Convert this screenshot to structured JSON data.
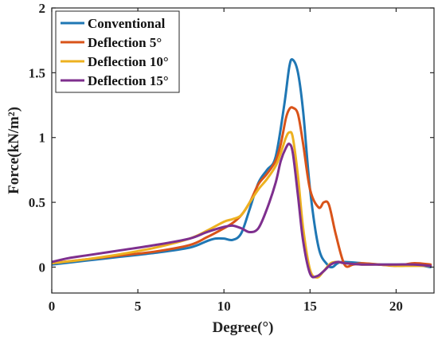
{
  "chart_data": {
    "type": "line",
    "title": "",
    "xlabel": "Degree(°)",
    "ylabel": "Force(kN/m²)",
    "xlim": [
      0,
      22.2
    ],
    "ylim": [
      -0.2,
      2
    ],
    "xticks": [
      0,
      5,
      10,
      15,
      20
    ],
    "yticks": [
      0,
      0.5,
      1,
      1.5,
      2
    ],
    "xtick_labels": [
      "0",
      "5",
      "10",
      "15",
      "20"
    ],
    "ytick_labels": [
      "0",
      "0.5",
      "1",
      "1.5",
      "2"
    ],
    "grid": false,
    "legend_position": "top-left",
    "series": [
      {
        "name": "Conventional",
        "color": "#1f77b4",
        "x": [
          0,
          2,
          4,
          6,
          8,
          9,
          9.5,
          10,
          10.5,
          11,
          11.5,
          12,
          12.5,
          13,
          13.5,
          13.8,
          14,
          14.3,
          14.6,
          15,
          15.5,
          16,
          16.3,
          16.6,
          17,
          18,
          19,
          20,
          21,
          22
        ],
        "y": [
          0.02,
          0.05,
          0.08,
          0.11,
          0.15,
          0.2,
          0.22,
          0.22,
          0.21,
          0.26,
          0.45,
          0.65,
          0.75,
          0.85,
          1.25,
          1.55,
          1.6,
          1.5,
          1.2,
          0.6,
          0.15,
          0.02,
          0,
          0.03,
          0.04,
          0.03,
          0.02,
          0.02,
          0.02,
          0.0
        ]
      },
      {
        "name": "Deflection 5°",
        "color": "#d95319",
        "x": [
          0,
          2,
          4,
          6,
          8,
          9,
          10,
          10.5,
          11,
          11.5,
          12,
          12.5,
          13,
          13.3,
          13.6,
          13.8,
          14,
          14.3,
          14.6,
          15,
          15.5,
          15.8,
          16.1,
          16.5,
          17,
          17.5,
          18,
          19,
          20,
          21,
          22
        ],
        "y": [
          0.03,
          0.06,
          0.09,
          0.12,
          0.17,
          0.23,
          0.3,
          0.34,
          0.4,
          0.5,
          0.64,
          0.72,
          0.82,
          0.95,
          1.15,
          1.22,
          1.23,
          1.18,
          0.95,
          0.6,
          0.46,
          0.5,
          0.48,
          0.25,
          0.02,
          0.02,
          0.03,
          0.02,
          0.01,
          0.03,
          0.02
        ]
      },
      {
        "name": "Deflection 10°",
        "color": "#edb120",
        "x": [
          0,
          2,
          4,
          6,
          8,
          9,
          10,
          10.5,
          11,
          11.5,
          12,
          12.5,
          13,
          13.3,
          13.6,
          13.8,
          14,
          14.3,
          14.6,
          15,
          15.4,
          15.8,
          16.2,
          16.6,
          17,
          18,
          19,
          20,
          21,
          22
        ],
        "y": [
          0.03,
          0.06,
          0.1,
          0.15,
          0.22,
          0.28,
          0.35,
          0.37,
          0.4,
          0.5,
          0.6,
          0.68,
          0.78,
          0.88,
          1.0,
          1.04,
          1.0,
          0.7,
          0.3,
          -0.02,
          -0.08,
          -0.03,
          0.03,
          0.04,
          0.03,
          0.02,
          0.02,
          0.01,
          0.01,
          0.01
        ]
      },
      {
        "name": "Deflection 15°",
        "color": "#7e2f8e",
        "x": [
          0,
          1,
          2,
          4,
          6,
          8,
          9,
          10,
          10.5,
          11,
          11.5,
          12,
          12.5,
          13,
          13.3,
          13.6,
          13.8,
          14,
          14.3,
          14.6,
          15,
          15.4,
          15.8,
          16.2,
          16.6,
          17,
          18,
          19,
          20,
          21,
          22
        ],
        "y": [
          0.04,
          0.07,
          0.09,
          0.13,
          0.17,
          0.22,
          0.27,
          0.31,
          0.32,
          0.3,
          0.27,
          0.3,
          0.45,
          0.65,
          0.82,
          0.92,
          0.95,
          0.88,
          0.55,
          0.2,
          -0.05,
          -0.07,
          -0.03,
          0.02,
          0.04,
          0.03,
          0.02,
          0.02,
          0.02,
          0.02,
          0.01
        ]
      }
    ]
  }
}
